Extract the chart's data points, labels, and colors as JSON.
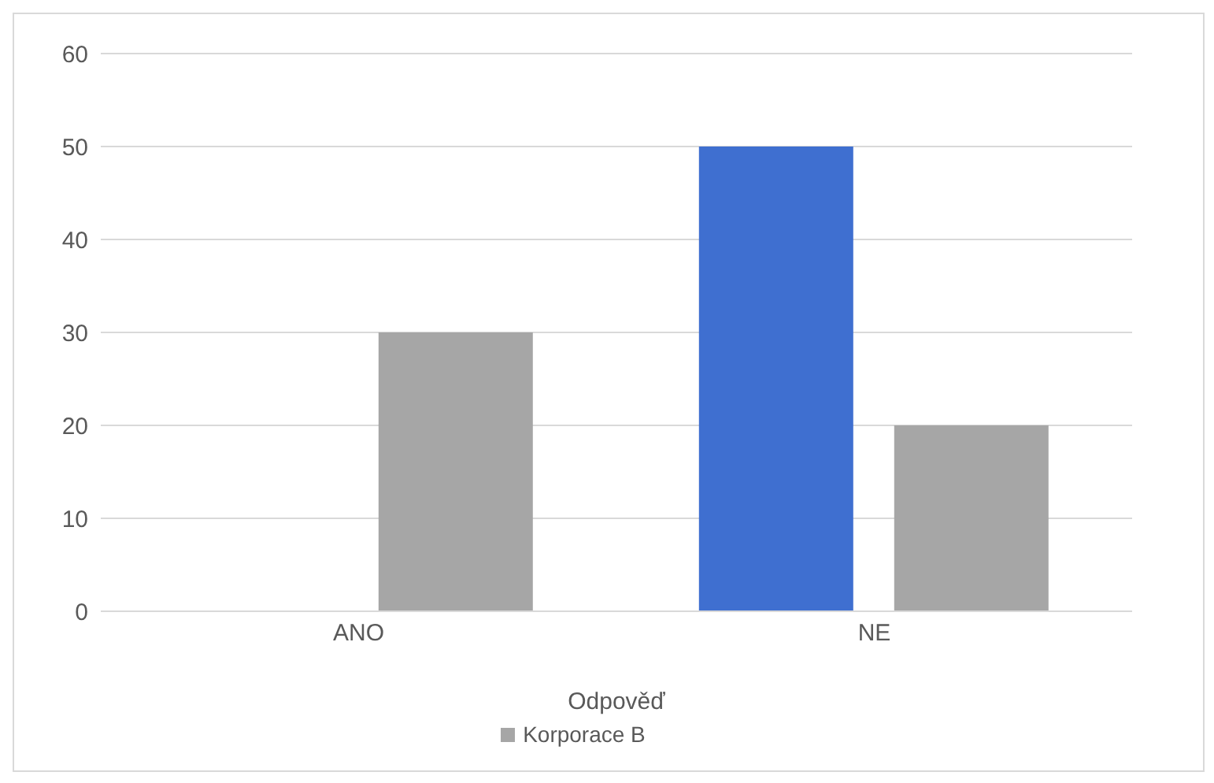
{
  "chart_data": {
    "type": "bar",
    "xlabel": "Odpověď",
    "categories": [
      "ANO",
      "NE"
    ],
    "series": [
      {
        "color": "#3f6fd0",
        "values": [
          0,
          50
        ]
      },
      {
        "name": "Korporace B",
        "color": "#a6a6a6",
        "values": [
          30,
          20
        ]
      }
    ],
    "ylim": [
      0,
      60
    ],
    "yticks": [
      0,
      10,
      20,
      30,
      40,
      50,
      60
    ],
    "grid": "y",
    "legend": "bottom"
  }
}
